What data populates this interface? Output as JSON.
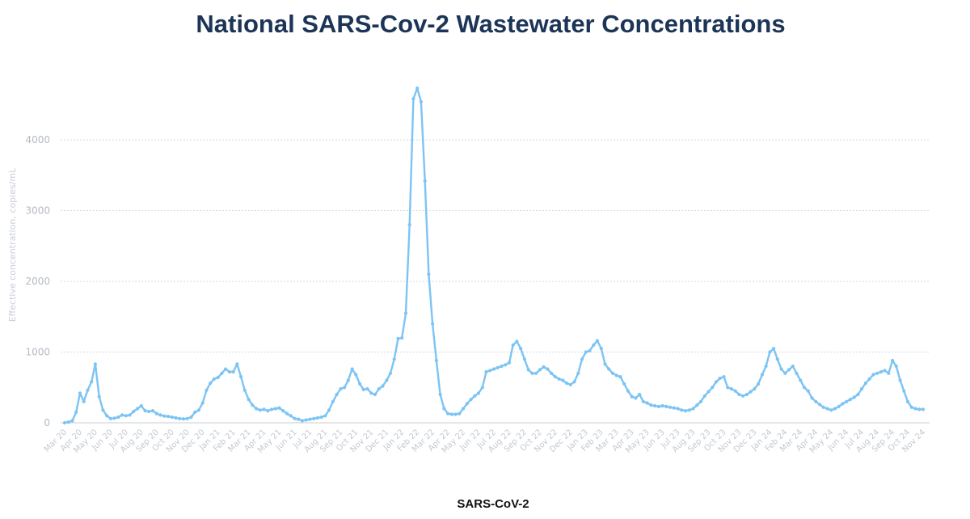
{
  "chart_data": {
    "type": "line",
    "title": "National SARS-Cov-2 Wastewater Concentrations",
    "xlabel": "",
    "ylabel": "Effective concentration, copies/mL",
    "ylim": [
      0,
      4700
    ],
    "yticks": [
      0,
      1000,
      2000,
      3000,
      4000
    ],
    "grid": true,
    "legend_position": "bottom",
    "series_color": "#7cc4f4",
    "x_tick_labels": [
      "Mar 20",
      "Apr 20",
      "May 20",
      "Jun 20",
      "Jul 20",
      "Aug 20",
      "Sep 20",
      "Oct 20",
      "Nov 20",
      "Dec 20",
      "Jan 21",
      "Feb 21",
      "Mar 21",
      "Apr 21",
      "May 21",
      "Jun 21",
      "Jul 21",
      "Aug 21",
      "Sep 21",
      "Oct 21",
      "Nov 21",
      "Dec 21",
      "Jan 22",
      "Feb 22",
      "Mar 22",
      "Apr 22",
      "May 22",
      "Jun 22",
      "Jul 22",
      "Aug 22",
      "Sep 22",
      "Oct 22",
      "Nov 22",
      "Dec 22",
      "Jan 23",
      "Feb 23",
      "Mar 23",
      "Apr 23",
      "May 23",
      "Jun 23",
      "Jul 23",
      "Aug 23",
      "Sep 23",
      "Oct 23",
      "Nov 23",
      "Dec 23",
      "Jan 24",
      "Feb 24",
      "Mar 24",
      "Apr 24",
      "May 24",
      "Jun 24",
      "Jul 24",
      "Aug 24",
      "Sep 24",
      "Oct 24",
      "Nov 24"
    ],
    "series": [
      {
        "name": "SARS-CoV-2",
        "x": [
          0,
          0.25,
          0.5,
          0.75,
          1,
          1.25,
          1.5,
          1.75,
          2,
          2.25,
          2.5,
          2.75,
          3,
          3.25,
          3.5,
          3.75,
          4,
          4.25,
          4.5,
          4.75,
          5,
          5.25,
          5.5,
          5.75,
          6,
          6.25,
          6.5,
          6.75,
          7,
          7.25,
          7.5,
          7.75,
          8,
          8.25,
          8.5,
          8.75,
          9,
          9.25,
          9.5,
          9.75,
          10,
          10.25,
          10.5,
          10.75,
          11,
          11.25,
          11.5,
          11.75,
          12,
          12.25,
          12.5,
          12.75,
          13,
          13.25,
          13.5,
          13.75,
          14,
          14.25,
          14.5,
          14.75,
          15,
          15.25,
          15.5,
          15.75,
          16,
          16.25,
          16.5,
          16.75,
          17,
          17.25,
          17.5,
          17.75,
          18,
          18.25,
          18.5,
          18.75,
          19,
          19.25,
          19.5,
          19.75,
          20,
          20.25,
          20.5,
          20.75,
          21,
          21.25,
          21.5,
          21.75,
          22,
          22.25,
          22.5,
          22.75,
          23,
          23.25,
          23.5,
          23.75,
          24,
          24.25,
          24.5,
          24.75,
          25,
          25.25,
          25.5,
          25.75,
          26,
          26.25,
          26.5,
          26.75,
          27,
          27.25,
          27.5,
          27.75,
          28,
          28.25,
          28.5,
          28.75,
          29,
          29.25,
          29.5,
          29.75,
          30,
          30.25,
          30.5,
          30.75,
          31,
          31.25,
          31.5,
          31.75,
          32,
          32.25,
          32.5,
          32.75,
          33,
          33.25,
          33.5,
          33.75,
          34,
          34.25,
          34.5,
          34.75,
          35,
          35.25,
          35.5,
          35.75,
          36,
          36.25,
          36.5,
          36.75,
          37,
          37.25,
          37.5,
          37.75,
          38,
          38.25,
          38.5,
          38.75,
          39,
          39.25,
          39.5,
          39.75,
          40,
          40.25,
          40.5,
          40.75,
          41,
          41.25,
          41.5,
          41.75,
          42,
          42.25,
          42.5,
          42.75,
          43,
          43.25,
          43.5,
          43.75,
          44,
          44.25,
          44.5,
          44.75,
          45,
          45.25,
          45.5,
          45.75,
          46,
          46.25,
          46.5,
          46.75,
          47,
          47.25,
          47.5,
          47.75,
          48,
          48.25,
          48.5,
          48.75,
          49,
          49.25,
          49.5,
          49.75,
          50,
          50.25,
          50.5,
          50.75,
          51,
          51.25,
          51.5,
          51.75,
          52,
          52.25,
          52.5,
          52.75,
          53,
          53.25,
          53.5,
          53.75,
          54,
          54.25,
          54.5,
          54.75,
          55,
          55.25,
          55.5,
          55.75,
          56
        ],
        "values": [
          0,
          10,
          30,
          150,
          420,
          300,
          460,
          580,
          830,
          370,
          180,
          100,
          60,
          65,
          80,
          110,
          100,
          110,
          160,
          200,
          240,
          170,
          160,
          170,
          130,
          110,
          95,
          90,
          80,
          70,
          60,
          55,
          60,
          80,
          150,
          180,
          280,
          460,
          560,
          620,
          640,
          700,
          760,
          720,
          720,
          830,
          650,
          460,
          330,
          250,
          200,
          180,
          190,
          170,
          190,
          200,
          210,
          170,
          130,
          100,
          60,
          50,
          30,
          40,
          50,
          60,
          70,
          80,
          100,
          180,
          300,
          400,
          480,
          500,
          600,
          760,
          680,
          550,
          470,
          480,
          420,
          400,
          480,
          520,
          600,
          700,
          900,
          1190,
          1200,
          1550,
          2800,
          4580,
          4730,
          4540,
          3420,
          2100,
          1400,
          880,
          400,
          200,
          130,
          120,
          120,
          130,
          200,
          270,
          330,
          380,
          420,
          500,
          720,
          740,
          760,
          780,
          800,
          820,
          850,
          1100,
          1150,
          1050,
          900,
          750,
          700,
          700,
          750,
          790,
          760,
          700,
          650,
          620,
          600,
          560,
          540,
          580,
          700,
          900,
          1000,
          1020,
          1100,
          1160,
          1050,
          830,
          760,
          700,
          670,
          650,
          550,
          450,
          370,
          350,
          400,
          300,
          280,
          250,
          240,
          230,
          240,
          230,
          220,
          210,
          200,
          180,
          170,
          180,
          200,
          250,
          300,
          380,
          440,
          500,
          580,
          630,
          650,
          500,
          480,
          450,
          400,
          380,
          400,
          440,
          480,
          550,
          680,
          800,
          1000,
          1050,
          900,
          760,
          700,
          750,
          800,
          700,
          600,
          500,
          450,
          350,
          300,
          260,
          220,
          200,
          180,
          200,
          230,
          270,
          300,
          330,
          360,
          400,
          480,
          560,
          620,
          680,
          700,
          720,
          740,
          700,
          880,
          800,
          600,
          450,
          300,
          220,
          200,
          190,
          190
        ]
      }
    ]
  }
}
